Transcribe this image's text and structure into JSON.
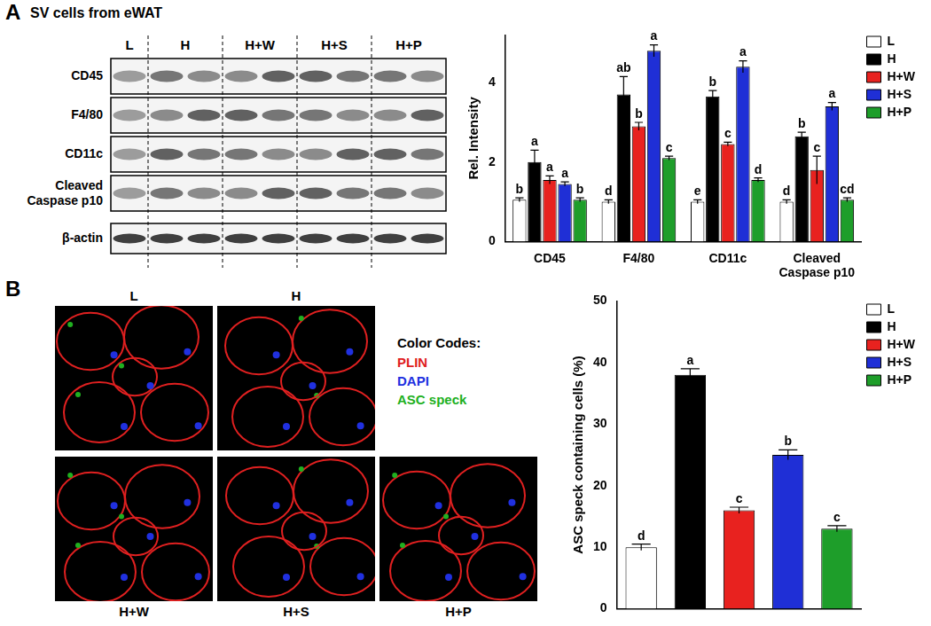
{
  "panel_a": {
    "letter": "A",
    "title": "SV cells from eWAT",
    "groups": [
      "L",
      "H",
      "H+W",
      "H+S",
      "H+P"
    ],
    "rows": [
      "CD45",
      "F4/80",
      "CD11c",
      [
        "Cleaved",
        "Caspase p10"
      ],
      "β-actin"
    ]
  },
  "panel_b": {
    "letter": "B",
    "images": [
      "L",
      "H",
      "H+W",
      "H+S",
      "H+P"
    ],
    "color_codes_title": "Color Codes:",
    "color_codes": [
      {
        "name": "PLIN",
        "color": "#e02020"
      },
      {
        "name": "DAPI",
        "color": "#2030e0"
      },
      {
        "name": "ASC speck",
        "color": "#20b020"
      }
    ]
  },
  "chart_data": [
    {
      "type": "bar",
      "y_label": "Rel. Intensity",
      "categories": [
        "CD45",
        "F4/80",
        "CD11c",
        [
          "Cleaved",
          "Caspase p10"
        ]
      ],
      "series": [
        {
          "name": "L",
          "color": "#ffffff",
          "values": [
            1.05,
            1.0,
            1.0,
            1.0
          ],
          "errors": [
            0.05,
            0.05,
            0.05,
            0.05
          ],
          "annotations": [
            "b",
            "d",
            "e",
            "d"
          ]
        },
        {
          "name": "H",
          "color": "#000000",
          "values": [
            2.0,
            3.7,
            3.65,
            2.65
          ],
          "errors": [
            0.3,
            0.45,
            0.15,
            0.1
          ],
          "annotations": [
            "a",
            "ab",
            "b",
            "b"
          ]
        },
        {
          "name": "H+W",
          "color": "#e8221f",
          "values": [
            1.55,
            2.9,
            2.45,
            1.8
          ],
          "errors": [
            0.1,
            0.1,
            0.05,
            0.35
          ],
          "annotations": [
            "a",
            "b",
            "c",
            "c"
          ]
        },
        {
          "name": "H+S",
          "color": "#1f2fd6",
          "values": [
            1.45,
            4.8,
            4.4,
            3.4
          ],
          "errors": [
            0.05,
            0.15,
            0.15,
            0.1
          ],
          "annotations": [
            "a",
            "a",
            "a",
            "a"
          ]
        },
        {
          "name": "H+P",
          "color": "#1e9e2a",
          "values": [
            1.05,
            2.1,
            1.55,
            1.05
          ],
          "errors": [
            0.05,
            0.05,
            0.05,
            0.05
          ],
          "annotations": [
            "b",
            "c",
            "d",
            "cd"
          ]
        }
      ],
      "ylim": [
        0,
        5.2
      ],
      "yticks": [
        0,
        2,
        4
      ],
      "grid": false,
      "legend": "top-right"
    },
    {
      "type": "bar",
      "y_label": "ASC speck containing cells (%)",
      "categories": [
        "L",
        "H",
        "H+W",
        "H+S",
        "H+P"
      ],
      "values": [
        10,
        38,
        16,
        25,
        13
      ],
      "errors": [
        0.5,
        1,
        0.5,
        0.8,
        0.5
      ],
      "annotations": [
        "d",
        "a",
        "c",
        "b",
        "c"
      ],
      "colors": [
        "#ffffff",
        "#000000",
        "#e8221f",
        "#1f2fd6",
        "#1e9e2a"
      ],
      "ylim": [
        0,
        50
      ],
      "yticks": [
        0,
        10,
        20,
        30,
        40,
        50
      ],
      "grid": false,
      "legend": "top-right",
      "tick_labels": "y"
    }
  ]
}
